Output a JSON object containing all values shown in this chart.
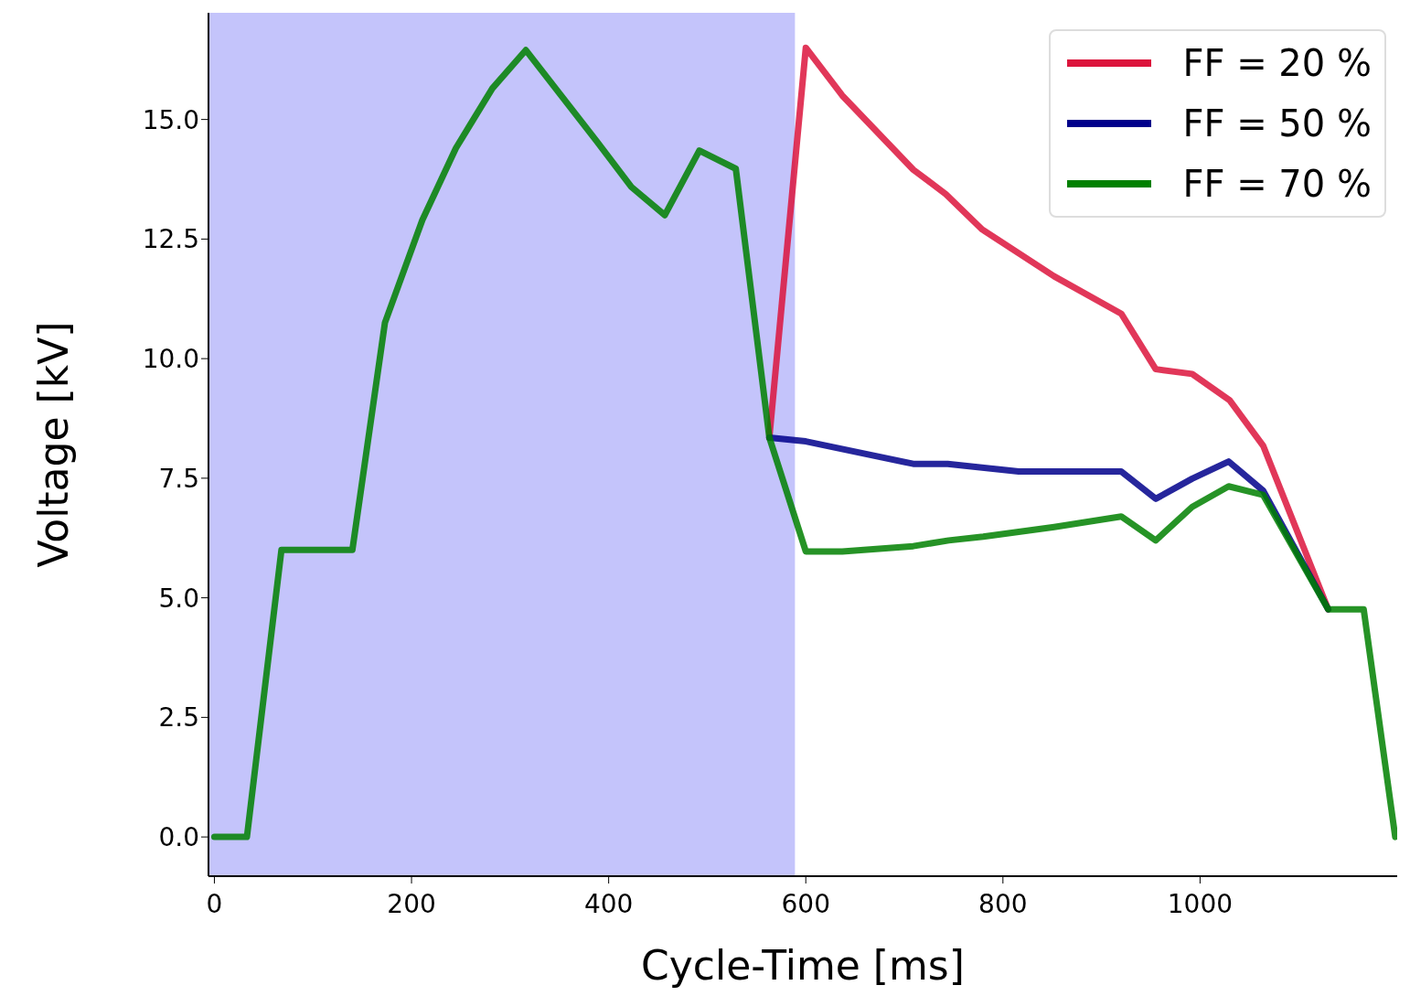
{
  "chart_data": {
    "type": "line",
    "xlabel": "Cycle-Time [ms]",
    "ylabel": "Voltage [kV]",
    "xlim": [
      -6,
      1200
    ],
    "ylim": [
      -0.82,
      17.23
    ],
    "xticks": [
      0,
      200,
      400,
      600,
      800,
      1000
    ],
    "yticks": [
      {
        "value": 0,
        "label": "0.0"
      },
      {
        "value": 2.5,
        "label": "2.5"
      },
      {
        "value": 5,
        "label": "5.0"
      },
      {
        "value": 7.5,
        "label": "7.5"
      },
      {
        "value": 10,
        "label": "10.0"
      },
      {
        "value": 12.5,
        "label": "12.5"
      },
      {
        "value": 15,
        "label": "15.0"
      }
    ],
    "bands": [
      {
        "axis": "x",
        "from": -6,
        "to": 589,
        "color": "#c4c4fb"
      }
    ],
    "legend": "top right",
    "grid": false,
    "line_style": "solid",
    "marker": "none",
    "series": [
      {
        "name": "FF = 20 %",
        "color": "#dc143c",
        "x": [
          563,
          600,
          637,
          709,
          742,
          779,
          852,
          920,
          955,
          992,
          1030,
          1064,
          1130
        ],
        "values": [
          8.35,
          16.5,
          15.5,
          13.95,
          13.44,
          12.7,
          11.72,
          10.94,
          9.78,
          9.68,
          9.13,
          8.18,
          4.76
        ]
      },
      {
        "name": "FF = 50 %",
        "color": "#00008b",
        "x": [
          563,
          600,
          709,
          744,
          816,
          920,
          955,
          992,
          1029,
          1064,
          1130
        ],
        "values": [
          8.35,
          8.27,
          7.8,
          7.8,
          7.64,
          7.64,
          7.07,
          7.49,
          7.85,
          7.24,
          4.76
        ]
      },
      {
        "name": "FF = 70 %",
        "color": "#008000",
        "x": [
          0,
          33,
          68,
          140,
          173,
          211,
          245,
          282,
          316,
          388,
          423,
          457,
          492,
          529,
          563,
          600,
          637,
          709,
          745,
          780,
          852,
          920,
          955,
          992,
          1029,
          1064,
          1130,
          1166,
          1198
        ],
        "values": [
          0,
          0,
          6.0,
          6.0,
          10.75,
          12.9,
          14.4,
          15.65,
          16.45,
          14.54,
          13.59,
          13.0,
          14.35,
          13.97,
          8.35,
          5.97,
          5.97,
          6.08,
          6.2,
          6.28,
          6.48,
          6.7,
          6.2,
          6.9,
          7.33,
          7.15,
          4.76,
          4.76,
          0
        ]
      }
    ]
  }
}
